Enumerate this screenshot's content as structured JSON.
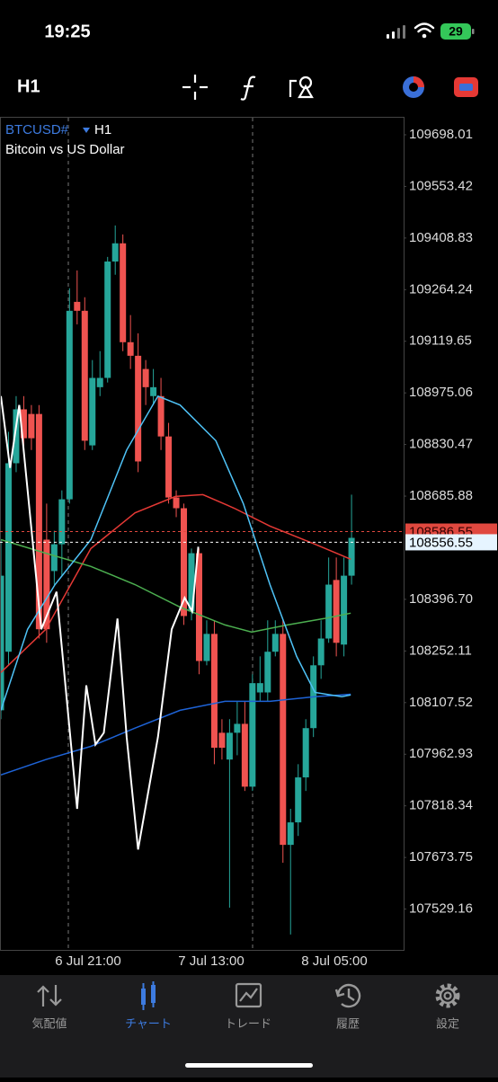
{
  "status_bar": {
    "time": "19:25",
    "battery": "29"
  },
  "toolbar": {
    "timeframe": "H1"
  },
  "chart_data": {
    "type": "candlestick",
    "symbol": "BTCUSD#",
    "timeframe": "H1",
    "description": "Bitcoin vs US Dollar",
    "up_color": "#26a69a",
    "down_color": "#ef5350",
    "open": [
      108086,
      108250,
      108778,
      108929,
      108916,
      108916,
      108564,
      108476,
      108551,
      108677,
      109230,
      109205,
      108828,
      108991,
      109017,
      109343,
      109394,
      109117,
      109079,
      109042,
      108966,
      108966,
      108853,
      108682,
      108652,
      108363,
      108526,
      108224,
      108300,
      108023,
      107948,
      108023,
      108048,
      107872,
      108136,
      108136,
      108250,
      108300,
      107709,
      107772,
      107898,
      108036,
      108212,
      108287,
      108451,
      108270,
      108463
    ],
    "high": [
      108564,
      108866,
      108966,
      108966,
      108941,
      108941,
      108665,
      108589,
      108702,
      109268,
      109318,
      109243,
      109067,
      109092,
      109356,
      109444,
      109419,
      109193,
      109142,
      109067,
      109042,
      109017,
      108891,
      108702,
      108665,
      108539,
      108539,
      108338,
      108338,
      108061,
      108061,
      108111,
      108111,
      108187,
      108237,
      108338,
      108338,
      108338,
      107810,
      107935,
      108061,
      108237,
      108338,
      108514,
      108514,
      108514,
      108690
    ],
    "low": [
      108061,
      108212,
      108753,
      108815,
      108815,
      108287,
      108275,
      108438,
      108463,
      108665,
      109167,
      108815,
      108815,
      108966,
      109004,
      109306,
      109092,
      109042,
      108753,
      108941,
      108941,
      108815,
      108665,
      108627,
      108325,
      108338,
      108187,
      108212,
      107935,
      107948,
      107533,
      107960,
      107860,
      107860,
      108111,
      108111,
      108237,
      107659,
      107458,
      107734,
      107860,
      108011,
      108174,
      108275,
      108237,
      108237,
      108438
    ],
    "close": [
      108463,
      108778,
      108929,
      108848,
      108848,
      108313,
      108313,
      108551,
      108677,
      109205,
      109205,
      108841,
      109017,
      109017,
      109343,
      109394,
      109117,
      109079,
      108783,
      108991,
      108991,
      108853,
      108682,
      108652,
      108350,
      108526,
      108224,
      108300,
      107981,
      107981,
      108023,
      108048,
      107872,
      108162,
      108162,
      108250,
      108300,
      107709,
      107772,
      107898,
      108036,
      108212,
      108287,
      108438,
      108275,
      108463,
      108569
    ],
    "overlays": [
      {
        "color": "#e53935",
        "x": [
          0,
          5.9,
          11.8,
          17.6,
          22.9,
          26.5,
          30.6,
          35.3,
          41.2,
          45.9
        ],
        "values": [
          108192,
          108313,
          108539,
          108639,
          108685,
          108690,
          108652,
          108602,
          108551,
          108509
        ]
      },
      {
        "color": "#4caf50",
        "x": [
          0,
          5.9,
          11.8,
          17.6,
          23.5,
          29.4,
          32.9,
          37.6,
          42.4,
          45.9
        ],
        "values": [
          108564,
          108526,
          108489,
          108438,
          108375,
          108325,
          108305,
          108325,
          108343,
          108358
        ]
      },
      {
        "color": "#1e63d6",
        "x": [
          0,
          5.9,
          11.8,
          17.6,
          23.5,
          29.4,
          35.3,
          41.2,
          45.9
        ],
        "values": [
          107905,
          107948,
          107985,
          108036,
          108086,
          108111,
          108111,
          108124,
          108131
        ]
      },
      {
        "color": "#4fc3f7",
        "x": [
          0,
          3.5,
          7.1,
          11.8,
          16.5,
          20.6,
          23.5,
          28.2,
          31.8,
          35.3,
          38.8,
          41.2,
          44.7,
          45.9
        ],
        "values": [
          108086,
          108313,
          108438,
          108564,
          108815,
          108966,
          108941,
          108841,
          108665,
          108438,
          108237,
          108136,
          108124,
          108129
        ]
      },
      {
        "color": "#ffffff",
        "x": [
          0,
          1.2,
          2.4,
          5.3,
          7.3,
          10,
          11.2,
          12.4,
          13.5,
          15.3,
          16.5,
          18,
          20.6,
          22.4,
          24.1,
          25.1,
          25.9
        ],
        "values": [
          108966,
          108765,
          108941,
          108313,
          108418,
          107810,
          108156,
          107990,
          108023,
          108343,
          108011,
          107696,
          108011,
          108313,
          108401,
          108363,
          108544
        ]
      }
    ],
    "price_lines": [
      {
        "value": 108586.55,
        "color": "#e0483f"
      },
      {
        "value": 108556.55,
        "color": "#ffffff"
      }
    ],
    "ylim": [
      107414.8,
      109745.8
    ],
    "yticks": [
      109698.01,
      109553.42,
      109408.83,
      109264.24,
      109119.65,
      108975.06,
      108830.47,
      108685.88,
      {
        "value": 108396.7,
        "label": "108396.70"
      },
      108252.11,
      108107.52,
      107962.93,
      107818.34,
      107673.75,
      107529.16
    ],
    "x_labels": [
      "6 Jul 21:00",
      "7 Jul 13:00",
      "8 Jul 05:00"
    ]
  },
  "tabs": [
    {
      "label": "気配値"
    },
    {
      "label": "チャート",
      "active": true
    },
    {
      "label": "トレード"
    },
    {
      "label": "履歴"
    },
    {
      "label": "設定"
    }
  ]
}
